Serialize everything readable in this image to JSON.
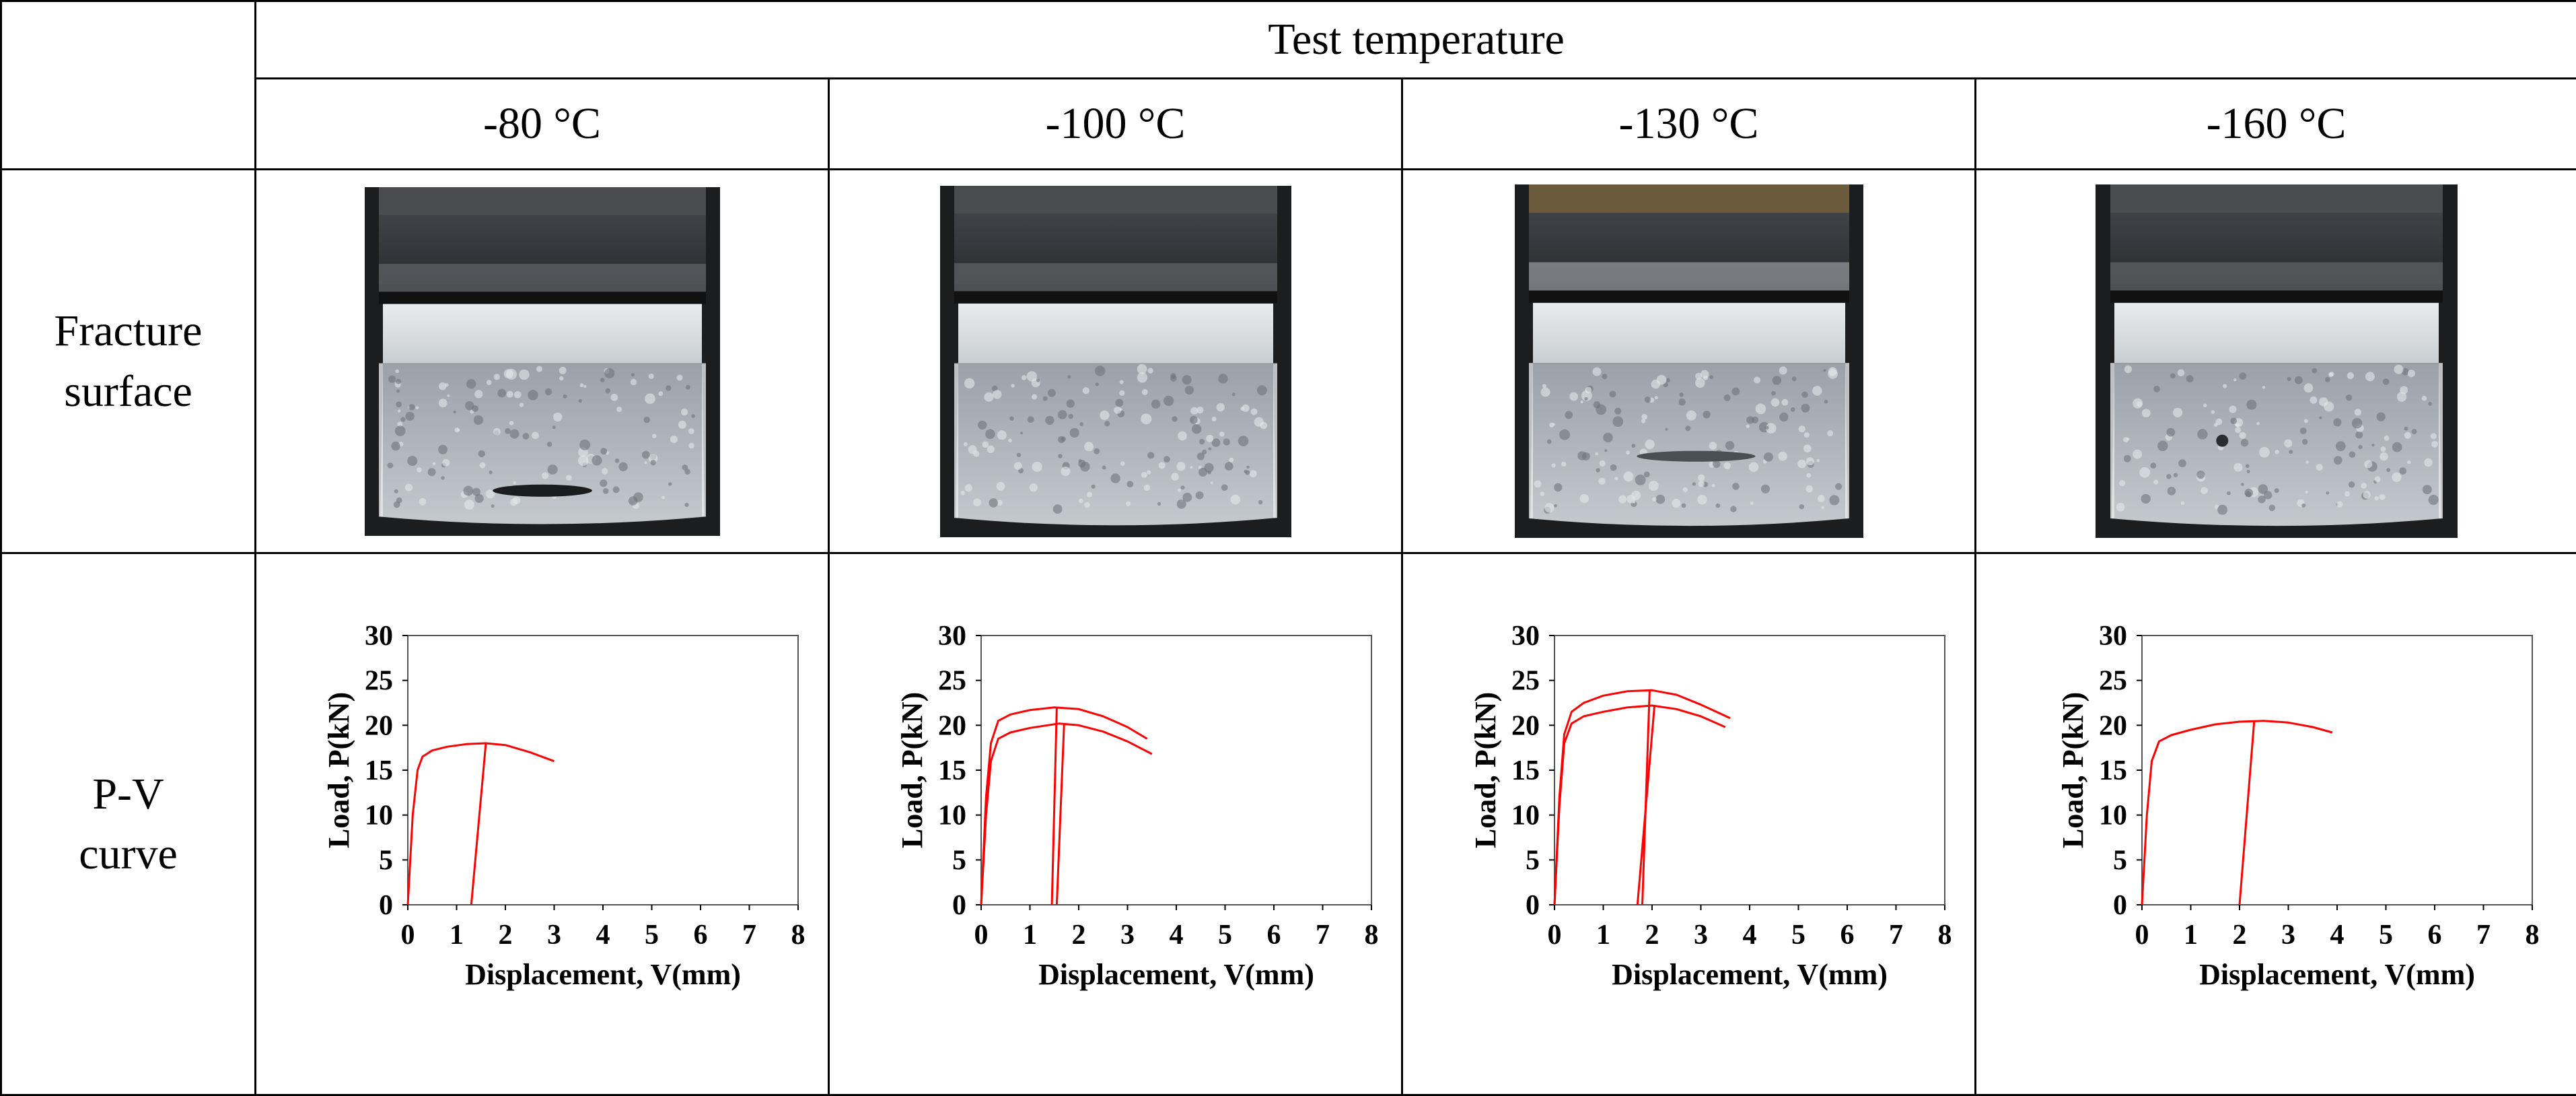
{
  "table": {
    "header_group": "Test temperature",
    "temperatures": [
      "-80 °C",
      "-100 °C",
      "-130 °C",
      "-160 °C"
    ],
    "row_labels": {
      "fracture": [
        "Fracture",
        "surface"
      ],
      "pv": [
        "P-V",
        "curve"
      ]
    }
  },
  "photos": [
    {
      "temperature": "-80 °C"
    },
    {
      "temperature": "-100 °C"
    },
    {
      "temperature": "-130 °C"
    },
    {
      "temperature": "-160 °C"
    }
  ],
  "colors": {
    "curve": "#ff0000",
    "axis": "#000000"
  },
  "chart_data": [
    {
      "type": "line",
      "xlabel": "Displacement, V(mm)",
      "ylabel": "Load, P(kN)",
      "xlim": [
        0,
        8
      ],
      "ylim": [
        0,
        30
      ],
      "xticks": [
        0,
        1,
        2,
        3,
        4,
        5,
        6,
        7,
        8
      ],
      "yticks": [
        0,
        5,
        10,
        15,
        20,
        25,
        30
      ],
      "grid": false,
      "series": [
        {
          "x": [
            0,
            0.1,
            0.2,
            0.3,
            0.5,
            0.8,
            1.2,
            1.6,
            2.0,
            2.5,
            3.0
          ],
          "y": [
            0,
            10,
            15,
            16.5,
            17.2,
            17.6,
            17.9,
            18.0,
            17.8,
            17.0,
            16.0
          ]
        },
        {
          "x": [
            1.6,
            1.3
          ],
          "y": [
            18.0,
            0
          ]
        }
      ]
    },
    {
      "type": "line",
      "xlabel": "Displacement, V(mm)",
      "ylabel": "Load, P(kN)",
      "xlim": [
        0,
        8
      ],
      "ylim": [
        0,
        30
      ],
      "xticks": [
        0,
        1,
        2,
        3,
        4,
        5,
        6,
        7,
        8
      ],
      "yticks": [
        0,
        5,
        10,
        15,
        20,
        25,
        30
      ],
      "grid": false,
      "series": [
        {
          "x": [
            0,
            0.1,
            0.2,
            0.35,
            0.6,
            1.0,
            1.5,
            2.0,
            2.5,
            3.0,
            3.4
          ],
          "y": [
            0,
            12,
            18,
            20.5,
            21.2,
            21.7,
            22.0,
            21.8,
            21.0,
            19.8,
            18.5
          ]
        },
        {
          "x": [
            1.55,
            1.45
          ],
          "y": [
            22.0,
            0
          ]
        },
        {
          "x": [
            0,
            0.1,
            0.2,
            0.35,
            0.6,
            1.0,
            1.6,
            2.0,
            2.5,
            3.0,
            3.5
          ],
          "y": [
            0,
            10,
            16,
            18.5,
            19.2,
            19.7,
            20.2,
            20.0,
            19.3,
            18.2,
            16.8
          ]
        },
        {
          "x": [
            1.7,
            1.55
          ],
          "y": [
            20.2,
            0
          ]
        }
      ]
    },
    {
      "type": "line",
      "xlabel": "Displacement, V(mm)",
      "ylabel": "Load, P(kN)",
      "xlim": [
        0,
        8
      ],
      "ylim": [
        0,
        30
      ],
      "xticks": [
        0,
        1,
        2,
        3,
        4,
        5,
        6,
        7,
        8
      ],
      "yticks": [
        0,
        5,
        10,
        15,
        20,
        25,
        30
      ],
      "grid": false,
      "series": [
        {
          "x": [
            0,
            0.1,
            0.2,
            0.35,
            0.6,
            1.0,
            1.5,
            2.0,
            2.5,
            3.0,
            3.6
          ],
          "y": [
            0,
            12,
            19,
            21.5,
            22.5,
            23.3,
            23.8,
            23.9,
            23.4,
            22.3,
            20.8
          ]
        },
        {
          "x": [
            1.95,
            1.8
          ],
          "y": [
            23.9,
            0
          ]
        },
        {
          "x": [
            0,
            0.1,
            0.2,
            0.35,
            0.6,
            1.0,
            1.5,
            2.0,
            2.5,
            3.0,
            3.5
          ],
          "y": [
            0,
            11,
            18,
            20.2,
            21.0,
            21.5,
            22.0,
            22.2,
            21.8,
            21.0,
            19.8
          ]
        },
        {
          "x": [
            2.05,
            1.7
          ],
          "y": [
            22.2,
            0
          ]
        }
      ]
    },
    {
      "type": "line",
      "xlabel": "Displacement, V(mm)",
      "ylabel": "Load, P(kN)",
      "xlim": [
        0,
        8
      ],
      "ylim": [
        0,
        30
      ],
      "xticks": [
        0,
        1,
        2,
        3,
        4,
        5,
        6,
        7,
        8
      ],
      "yticks": [
        0,
        5,
        10,
        15,
        20,
        25,
        30
      ],
      "grid": false,
      "series": [
        {
          "x": [
            0,
            0.1,
            0.2,
            0.35,
            0.6,
            1.0,
            1.5,
            2.0,
            2.5,
            3.0,
            3.5,
            3.9
          ],
          "y": [
            0,
            10,
            16,
            18.2,
            18.9,
            19.5,
            20.1,
            20.4,
            20.5,
            20.3,
            19.8,
            19.2
          ]
        },
        {
          "x": [
            2.3,
            2.0
          ],
          "y": [
            20.5,
            0
          ]
        }
      ]
    }
  ]
}
